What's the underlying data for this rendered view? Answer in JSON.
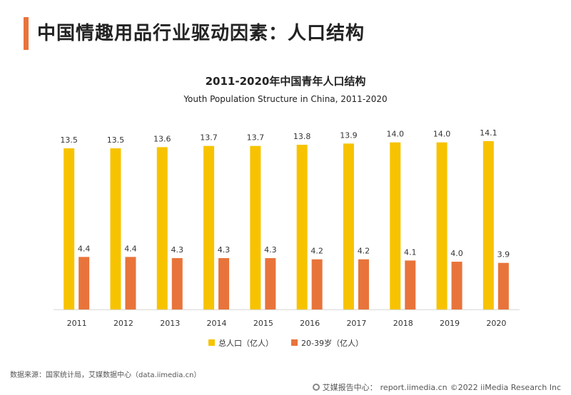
{
  "header": {
    "title": "中国情趣用品行业驱动因素：人口结构"
  },
  "footer": {
    "source": "数据来源：国家统计局，艾媒数据中心（data.iimedia.cn）",
    "site_label": "艾媒报告中心：",
    "site_url": "report.iimedia.cn",
    "copyright": "©2022  iiMedia Research  Inc"
  },
  "colors": {
    "accent": "#e8743b",
    "series_total": "#f7c300",
    "series_youth": "#e8743b"
  },
  "chart_data": {
    "type": "bar",
    "title": "2011-2020年中国青年人口结构",
    "subtitle": "Youth Population Structure in China, 2011-2020",
    "xlabel": "",
    "ylabel": "",
    "ylim": [
      0,
      14.1
    ],
    "categories": [
      "2011",
      "2012",
      "2013",
      "2014",
      "2015",
      "2016",
      "2017",
      "2018",
      "2019",
      "2020"
    ],
    "series": [
      {
        "name": "总人口（亿人）",
        "values": [
          13.5,
          13.5,
          13.6,
          13.7,
          13.7,
          13.8,
          13.9,
          14.0,
          14.0,
          14.1
        ],
        "labels": [
          "13.5",
          "13.5",
          "13.6",
          "13.7",
          "13.7",
          "13.8",
          "13.9",
          "14.0",
          "14.0",
          "14.1"
        ]
      },
      {
        "name": "20-39岁（亿人）",
        "values": [
          4.4,
          4.4,
          4.3,
          4.3,
          4.3,
          4.2,
          4.2,
          4.1,
          4.0,
          3.9
        ],
        "labels": [
          "4.4",
          "4.4",
          "4.3",
          "4.3",
          "4.3",
          "4.2",
          "4.2",
          "4.1",
          "4.0",
          "3.9"
        ]
      }
    ],
    "legend": "bottom-center",
    "grid": false
  }
}
